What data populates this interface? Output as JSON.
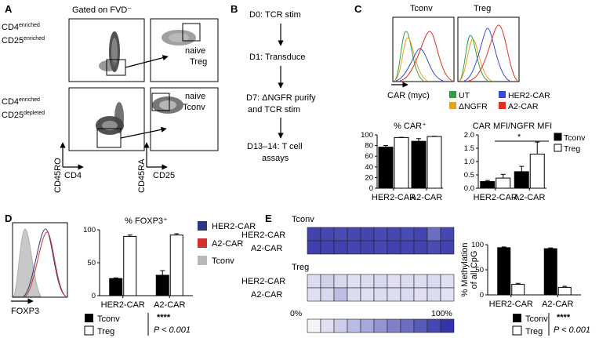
{
  "panel_labels": {
    "A": "A",
    "B": "B",
    "C": "C",
    "D": "D",
    "E": "E"
  },
  "panelA": {
    "title": "Gated on FVD⁻",
    "row1_label_1": "CD4",
    "row1_label_1_sup": "enriched",
    "row1_label_2": "CD25",
    "row1_label_2_sup": "enriched",
    "row2_label_1": "CD4",
    "row2_label_1_sup": "enriched",
    "row2_label_2": "CD25",
    "row2_label_2_sup": "depleted",
    "gate_treg_1": "naive",
    "gate_treg_2": "Treg",
    "gate_tconv_1": "naive",
    "gate_tconv_2": "Tconv",
    "xaxis_left": "CD4",
    "yaxis_left": "CD45RO",
    "xaxis_right": "CD25",
    "yaxis_right": "CD45RA"
  },
  "panelB": {
    "steps": [
      "D0: TCR stim",
      "D1: Transduce",
      "D7: ΔNGFR purify",
      "and TCR stim",
      "D13–14: T cell",
      "assays"
    ]
  },
  "panelC": {
    "hist_title_left": "Tconv",
    "hist_title_right": "Treg",
    "hist_xlabel": "CAR (myc)",
    "legend": [
      {
        "label": "UT",
        "color": "#2ea043"
      },
      {
        "label": "HER2-CAR",
        "color": "#3a4bd1"
      },
      {
        "label": "ΔNGFR",
        "color": "#e8a020"
      },
      {
        "label": "A2-CAR",
        "color": "#e0301e"
      }
    ],
    "bar_legend": [
      {
        "label": "Tconv",
        "color": "#000000"
      },
      {
        "label": "Treg",
        "color": "#ffffff"
      }
    ],
    "significance": "*"
  },
  "panelD": {
    "hist_xlabel": "FOXP3",
    "legend": [
      {
        "label": "HER2-CAR",
        "color": "#2c3580"
      },
      {
        "label": "A2-CAR",
        "color": "#d03030"
      },
      {
        "label": "Tconv",
        "color": "#b8b8b8"
      }
    ],
    "key_tconv": "Tconv",
    "key_treg": "Treg",
    "stars": "****",
    "pvalue": "P < 0.001"
  },
  "panelE": {
    "heat_title_tconv": "Tconv",
    "heat_title_treg": "Treg",
    "rows": [
      "HER2-CAR",
      "A2-CAR"
    ],
    "scale_min": "0%",
    "scale_max": "100%",
    "tconv_values": [
      [
        92,
        90,
        88,
        90,
        91,
        89,
        90,
        88,
        91,
        70,
        90
      ],
      [
        94,
        92,
        93,
        91,
        92,
        90,
        93,
        91,
        92,
        88,
        92
      ]
    ],
    "treg_values": [
      [
        12,
        18,
        14,
        10,
        12,
        14,
        10,
        12,
        11,
        13,
        10
      ],
      [
        10,
        14,
        28,
        12,
        10,
        12,
        11,
        13,
        10,
        12,
        9
      ]
    ],
    "scale_values": [
      0,
      10,
      20,
      30,
      40,
      50,
      60,
      70,
      80,
      90,
      100
    ],
    "key_tconv": "Tconv",
    "key_treg": "Treg",
    "stars": "****",
    "pvalue": "P < 0.001"
  },
  "chart_data": [
    {
      "type": "bar",
      "title": "% CAR⁺",
      "categories": [
        "HER2-CAR",
        "A2-CAR"
      ],
      "series": [
        {
          "name": "Tconv",
          "values": [
            77,
            88
          ],
          "errors": [
            3,
            5
          ]
        },
        {
          "name": "Treg",
          "values": [
            95,
            97
          ],
          "errors": [
            0.5,
            0.5
          ]
        }
      ],
      "ylim": [
        0,
        100
      ],
      "yticks": [
        0,
        20,
        40,
        60,
        80,
        100
      ]
    },
    {
      "type": "bar",
      "title": "CAR MFI/NGFR MFI",
      "categories": [
        "HER2-CAR",
        "A2-CAR"
      ],
      "series": [
        {
          "name": "Tconv",
          "values": [
            0.25,
            0.62
          ],
          "errors": [
            0.04,
            0.2
          ]
        },
        {
          "name": "Treg",
          "values": [
            0.38,
            1.28
          ],
          "errors": [
            0.14,
            0.45
          ]
        }
      ],
      "ylim": [
        0,
        2.0
      ],
      "yticks": [
        0.0,
        0.5,
        1.0,
        1.5,
        2.0
      ]
    },
    {
      "type": "bar",
      "title": "% FOXP3⁺",
      "categories": [
        "HER2-CAR",
        "A2-CAR"
      ],
      "series": [
        {
          "name": "Tconv",
          "values": [
            26,
            31
          ],
          "errors": [
            1,
            7
          ]
        },
        {
          "name": "Treg",
          "values": [
            90,
            92
          ],
          "errors": [
            2,
            2
          ]
        }
      ],
      "ylim": [
        0,
        100
      ],
      "yticks": [
        0,
        50,
        100
      ]
    },
    {
      "type": "bar",
      "title": "",
      "ylabel": "% Methylation of all CpG",
      "categories": [
        "HER2-CAR",
        "A2-CAR"
      ],
      "series": [
        {
          "name": "Tconv",
          "values": [
            94,
            92
          ],
          "errors": [
            1.5,
            1.5
          ]
        },
        {
          "name": "Treg",
          "values": [
            21,
            15
          ],
          "errors": [
            2,
            2
          ]
        }
      ],
      "ylim": [
        0,
        100
      ],
      "yticks": [
        0,
        50,
        100
      ]
    }
  ]
}
